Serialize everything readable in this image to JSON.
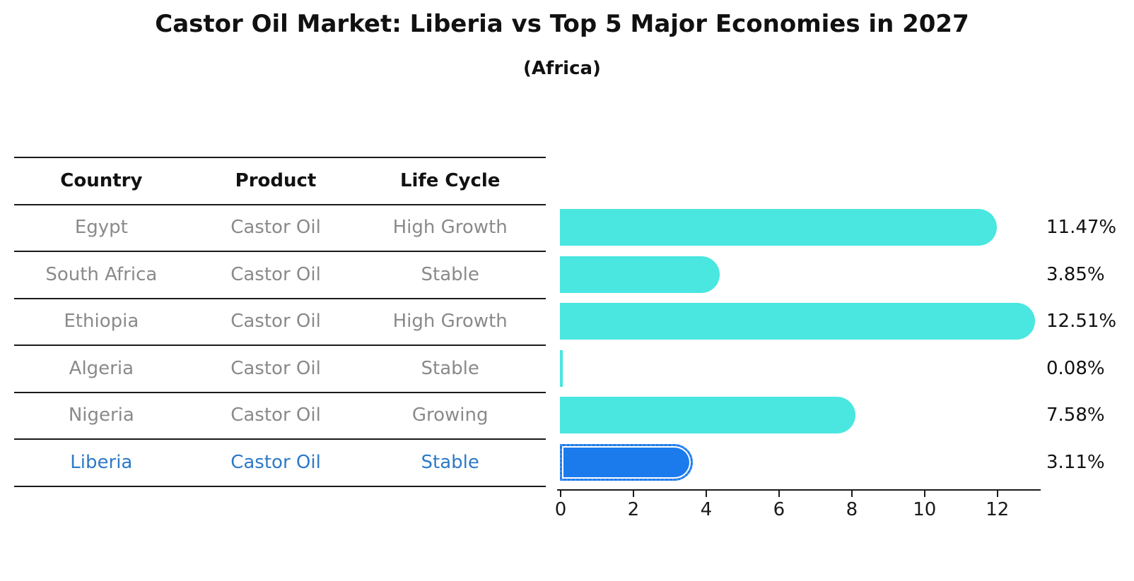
{
  "header": {
    "title": "Castor Oil Market: Liberia vs Top 5 Major Economies in 2027",
    "subtitle": "(Africa)"
  },
  "table": {
    "columns": [
      "Country",
      "Product",
      "Life Cycle"
    ],
    "rows": [
      {
        "country": "Egypt",
        "product": "Castor Oil",
        "life_cycle": "High Growth",
        "highlight": false
      },
      {
        "country": "South Africa",
        "product": "Castor Oil",
        "life_cycle": "Stable",
        "highlight": false
      },
      {
        "country": "Ethiopia",
        "product": "Castor Oil",
        "life_cycle": "High Growth",
        "highlight": false
      },
      {
        "country": "Algeria",
        "product": "Castor Oil",
        "life_cycle": "Stable",
        "highlight": false
      },
      {
        "country": "Nigeria",
        "product": "Castor Oil",
        "life_cycle": "Growing",
        "highlight": false
      },
      {
        "country": "Liberia",
        "product": "Castor Oil",
        "life_cycle": "Stable",
        "highlight": true
      }
    ]
  },
  "chart_data": {
    "type": "bar",
    "orientation": "horizontal",
    "title": "Castor Oil Market: Liberia vs Top 5 Major Economies in 2027",
    "subtitle": "(Africa)",
    "categories": [
      "Egypt",
      "South Africa",
      "Ethiopia",
      "Algeria",
      "Nigeria",
      "Liberia"
    ],
    "values": [
      11.47,
      3.85,
      12.51,
      0.08,
      7.58,
      3.11
    ],
    "value_labels": [
      "11.47%",
      "3.85%",
      "12.51%",
      "0.08%",
      "7.58%",
      "3.11%"
    ],
    "unit": "%",
    "x_ticks": [
      0,
      2,
      4,
      6,
      8,
      10,
      12
    ],
    "xlim": [
      0,
      13.17
    ],
    "grid": false,
    "legend": "none",
    "highlight_index": 5,
    "bar_color": "#4ae6e0",
    "highlight_bar_color": "#1b7aec",
    "highlight_text_color": "#2d7ac8"
  }
}
